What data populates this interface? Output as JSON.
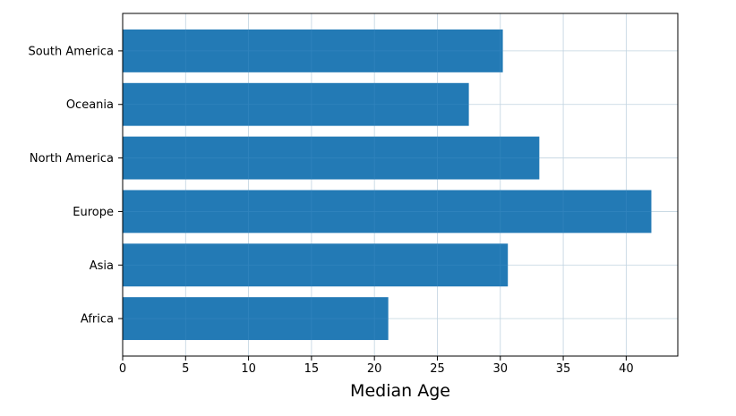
{
  "colors": {
    "bar": "#1f77b4",
    "grid": "#e6e6e6",
    "axis": "#000000"
  },
  "chart_data": {
    "type": "bar",
    "orientation": "horizontal",
    "categories": [
      "Africa",
      "Asia",
      "Europe",
      "North America",
      "Oceania",
      "South America"
    ],
    "values": [
      21.1,
      30.6,
      42.0,
      33.1,
      27.5,
      30.2
    ],
    "xlabel": "Median Age",
    "ylabel": "",
    "title": "",
    "xlim": [
      0,
      44.1
    ],
    "xticks": [
      0,
      5,
      10,
      15,
      20,
      25,
      30,
      35,
      40
    ],
    "grid": true,
    "legend": "none"
  }
}
